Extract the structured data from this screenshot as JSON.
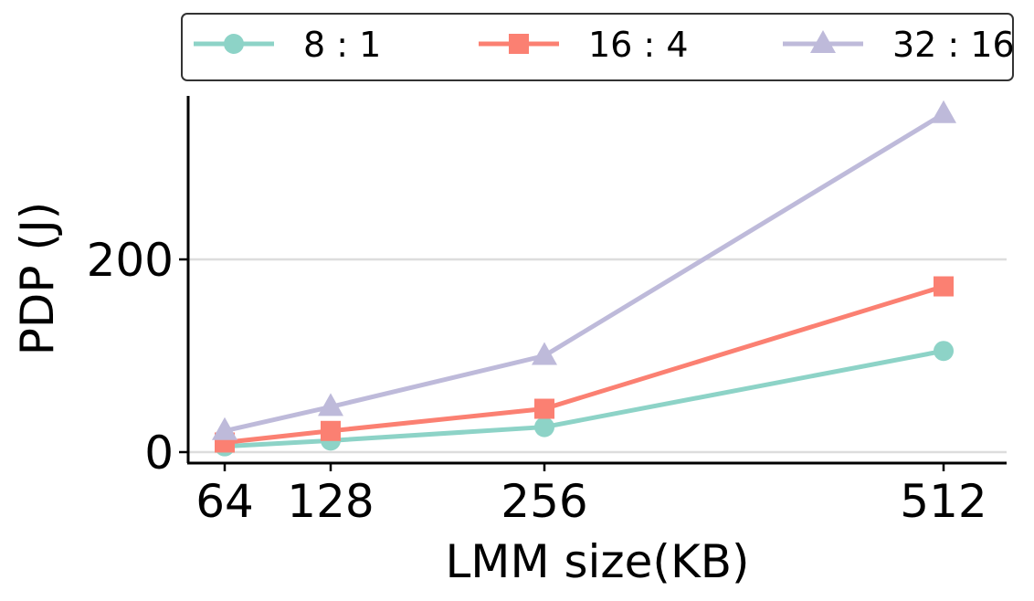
{
  "chart_data": {
    "type": "line",
    "title": "",
    "xlabel": "LMM size(KB)",
    "ylabel": "PDP (J)",
    "x": [
      64,
      128,
      256,
      512
    ],
    "x_tick_labels": [
      "64",
      "128",
      "256",
      "512"
    ],
    "y_ticks": [
      0,
      200
    ],
    "y_tick_labels": [
      "0",
      "200"
    ],
    "ylim": [
      -12,
      370
    ],
    "grid": {
      "y": true,
      "x": false
    },
    "legend_position": "top, above plot",
    "series": [
      {
        "name": "8 : 1",
        "marker": "circle",
        "color": "#8dd3c7",
        "values": [
          6,
          12,
          26,
          105
        ]
      },
      {
        "name": "16 : 4",
        "marker": "square",
        "color": "#fb8072",
        "values": [
          10,
          22,
          45,
          172
        ]
      },
      {
        "name": "32 : 16",
        "marker": "triangle",
        "color": "#bebada",
        "values": [
          22,
          47,
          100,
          351
        ]
      }
    ]
  }
}
